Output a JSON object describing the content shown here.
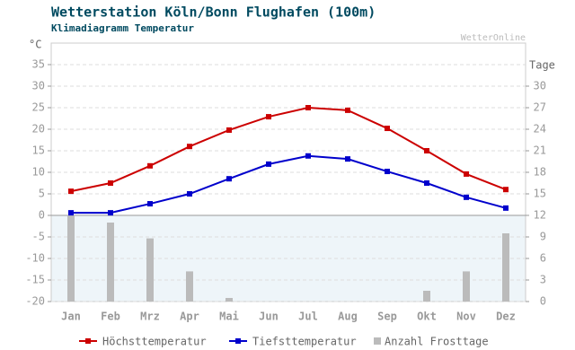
{
  "chart_data": {
    "type": "line",
    "title": "Wetterstation Köln/Bonn Flughafen (100m)",
    "subtitle": "Klimadiagramm Temperatur",
    "source": "WetterOnline",
    "y_label": "°C",
    "y2_label": "Tage",
    "categories": [
      "Jan",
      "Feb",
      "Mrz",
      "Apr",
      "Mai",
      "Jun",
      "Jul",
      "Aug",
      "Sep",
      "Okt",
      "Nov",
      "Dez"
    ],
    "ylim": [
      -20,
      40
    ],
    "yticks": [
      -20,
      -15,
      -10,
      -5,
      0,
      5,
      10,
      15,
      20,
      25,
      30,
      35
    ],
    "y2lim": [
      0,
      36
    ],
    "y2ticks": [
      0,
      3,
      6,
      9,
      12,
      15,
      18,
      21,
      24,
      27,
      30
    ],
    "grid": true,
    "series": [
      {
        "name": "Höchsttemperatur",
        "type": "line",
        "color": "#cc0000",
        "values": [
          5.6,
          7.5,
          11.5,
          16.0,
          19.8,
          22.9,
          25.0,
          24.4,
          20.2,
          15.0,
          9.6,
          6.0
        ]
      },
      {
        "name": "Tiefsttemperatur",
        "type": "line",
        "color": "#0000cc",
        "values": [
          0.6,
          0.6,
          2.7,
          5.0,
          8.5,
          11.9,
          13.8,
          13.1,
          10.2,
          7.5,
          4.2,
          1.7
        ]
      },
      {
        "name": "Anzahl Frosttage",
        "type": "bar",
        "axis": "y2",
        "color": "#bbbbbb",
        "values": [
          12,
          11,
          8.8,
          4.2,
          0.5,
          0,
          0,
          0,
          0,
          1.5,
          4.2,
          9.5
        ]
      }
    ]
  }
}
